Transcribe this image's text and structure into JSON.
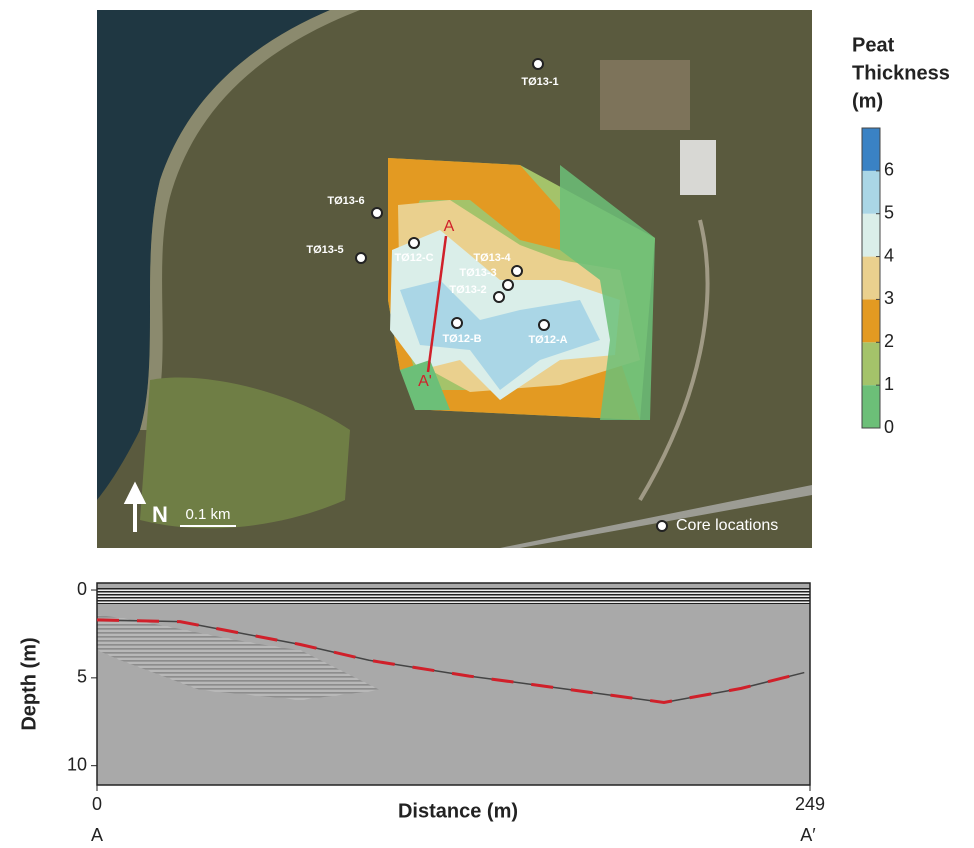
{
  "map": {
    "legend": {
      "title": [
        "Peat",
        "Thickness",
        "(m)"
      ],
      "lim": [
        0,
        7
      ],
      "ticks": [
        0,
        1,
        2,
        3,
        4,
        5,
        6
      ],
      "colors": [
        "#6cbf78",
        "#a4c36a",
        "#e39a22",
        "#ead08e",
        "#daeee9",
        "#aad6e6",
        "#3a82c4"
      ]
    },
    "cores": [
      "TØ13-1",
      "TØ13-6",
      "TØ13-5",
      "TØ12-C",
      "TØ13-4",
      "TØ13-3",
      "TØ13-2",
      "TØ12-B",
      "TØ12-A"
    ],
    "transect": [
      "A",
      "A'"
    ],
    "north": "N",
    "scale": "0.1 km",
    "core_legend": "Core locations"
  },
  "profile": {
    "xlabel": "Distance (m)",
    "ylabel": "Depth (m)",
    "xlim": [
      0,
      249
    ],
    "xticks": [
      0,
      249
    ],
    "ylim": [
      -0.4,
      11.1
    ],
    "yticks": [
      0,
      5,
      10
    ],
    "ends": [
      "A",
      "A′"
    ],
    "interface": {
      "x": [
        0,
        29,
        71,
        95,
        130,
        162,
        198,
        225,
        247
      ],
      "depth": [
        1.7,
        1.8,
        3.1,
        4.0,
        4.9,
        5.6,
        6.4,
        5.6,
        4.7
      ]
    }
  }
}
